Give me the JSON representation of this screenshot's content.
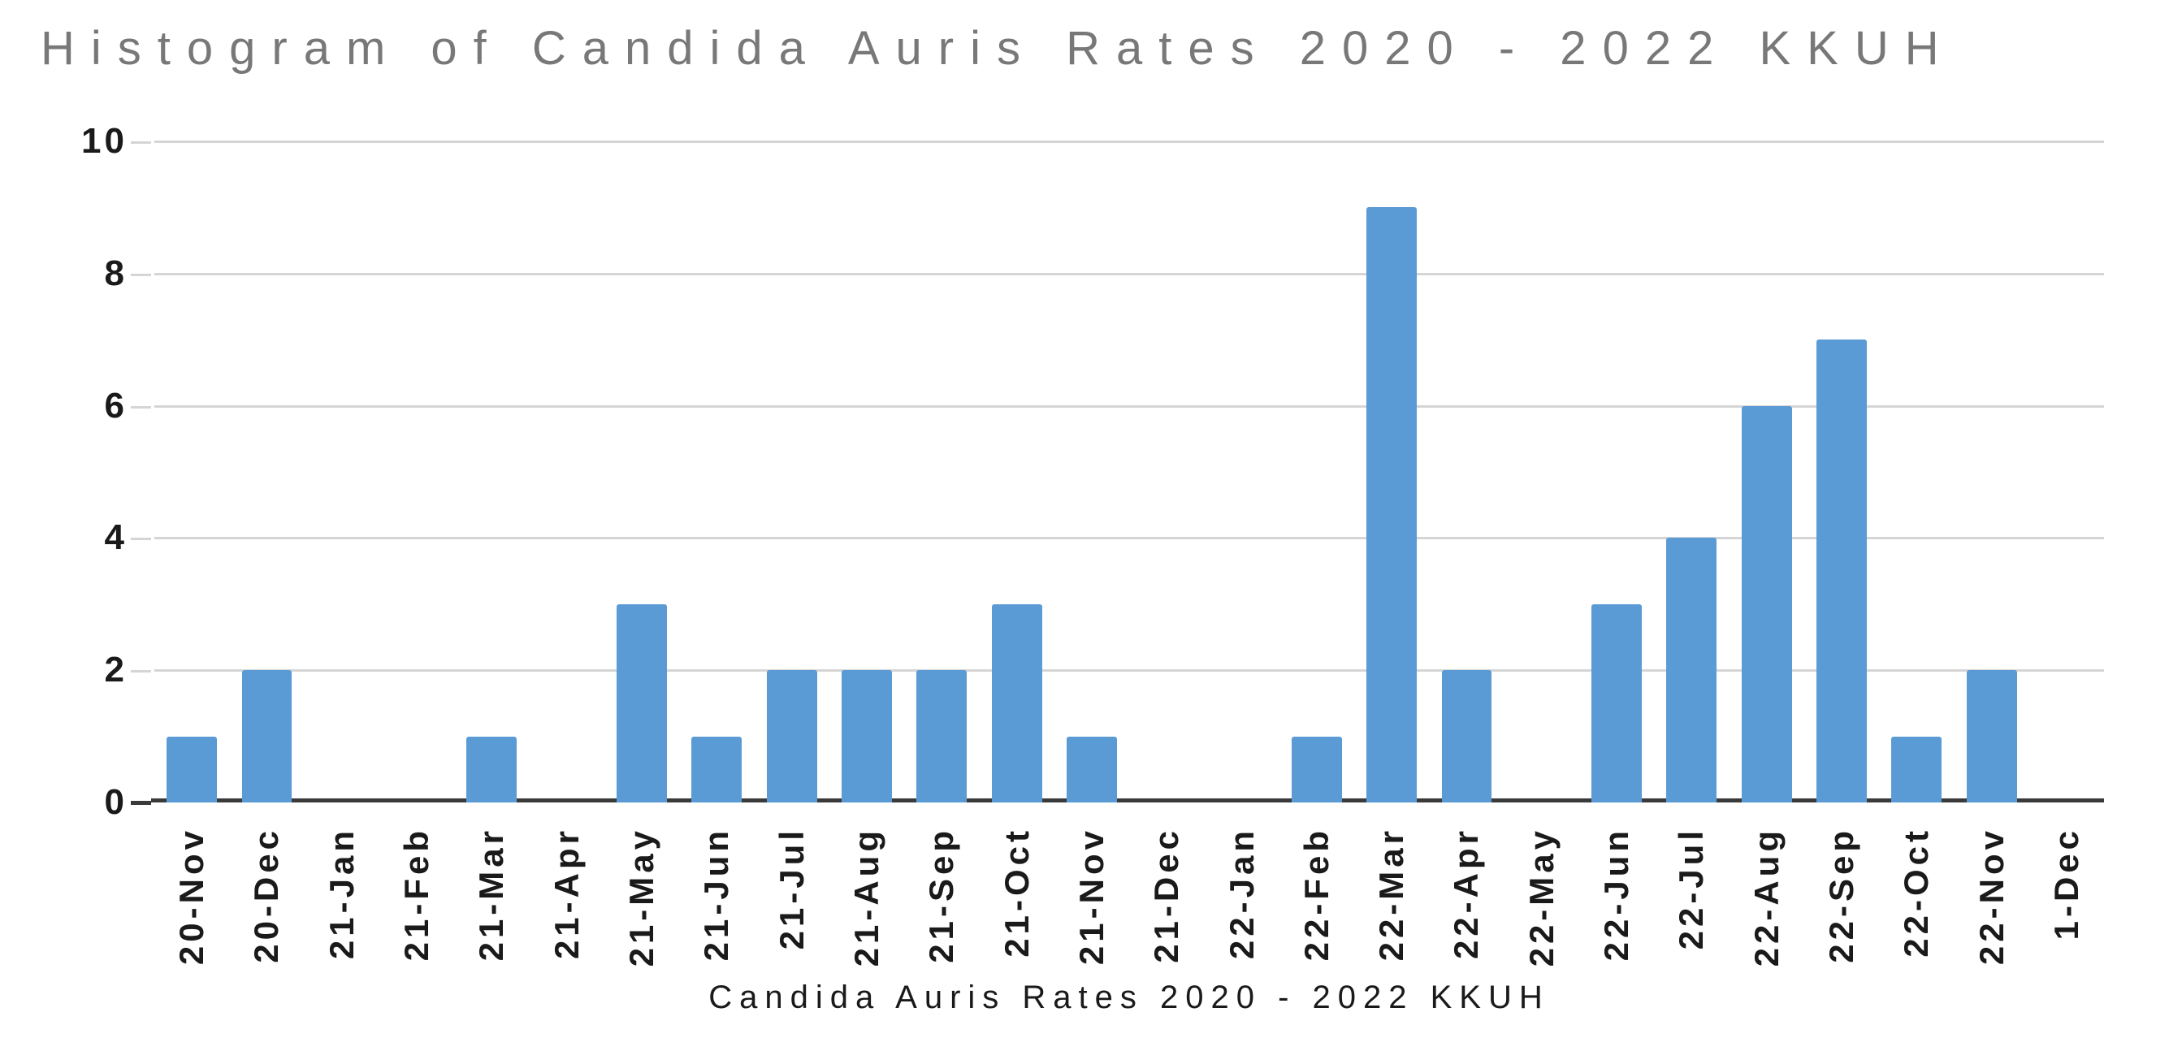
{
  "chart_data": {
    "type": "bar",
    "title": "Histogram of Candida Auris Rates 2020 - 2022 KKUH",
    "xlabel": "Candida Auris Rates 2020 - 2022 KKUH",
    "ylabel": "",
    "categories": [
      "20-Nov",
      "20-Dec",
      "21-Jan",
      "21-Feb",
      "21-Mar",
      "21-Apr",
      "21-May",
      "21-Jun",
      "21-Jul",
      "21-Aug",
      "21-Sep",
      "21-Oct",
      "21-Nov",
      "21-Dec",
      "22-Jan",
      "22-Feb",
      "22-Mar",
      "22-Apr",
      "22-May",
      "22-Jun",
      "22-Jul",
      "22-Aug",
      "22-Sep",
      "22-Oct",
      "22-Nov",
      "1-Dec"
    ],
    "values": [
      1,
      2,
      0,
      0,
      1,
      0,
      3,
      1,
      2,
      2,
      2,
      3,
      1,
      0,
      0,
      1,
      9,
      2,
      0,
      3,
      4,
      6,
      7,
      1,
      2,
      0
    ],
    "y_ticks": [
      0,
      2,
      4,
      6,
      8,
      10
    ],
    "ylim": [
      0,
      10
    ],
    "grid": true,
    "legend": false,
    "colors": {
      "bar": "#5B9BD5",
      "gridline": "#D5D5D5",
      "axis_line": "#3A3A3A",
      "title_text": "#787878",
      "tick_text": "#1A1A1A"
    }
  }
}
